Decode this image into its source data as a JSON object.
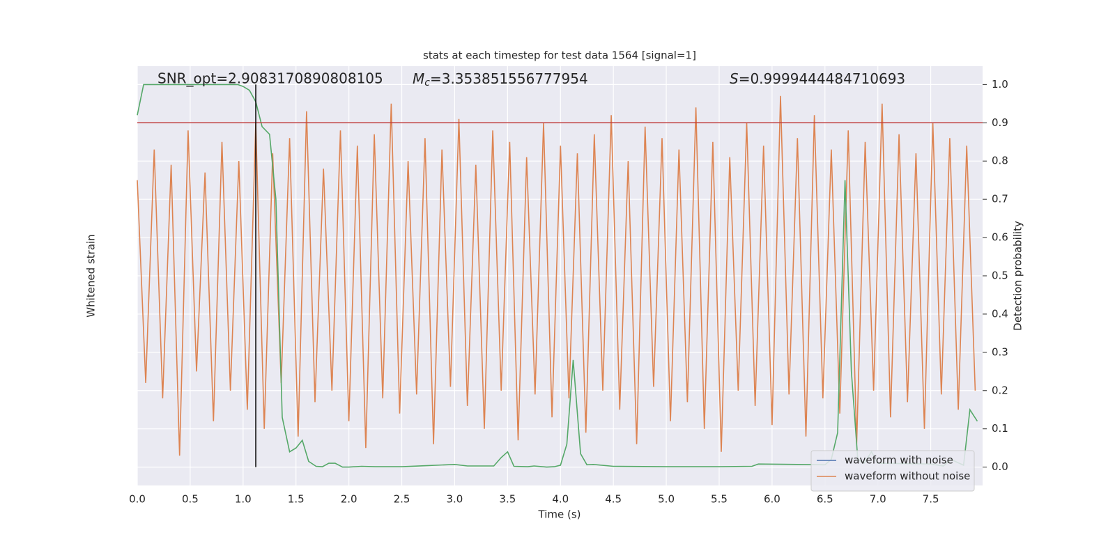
{
  "chart_data": {
    "type": "line",
    "title": "stats at each timestep for test data 1564 [signal=1]",
    "xlabel": "Time (s)",
    "ylabel": "Whitened strain",
    "y2label": "Detection probability",
    "annotations": {
      "snr": "SNR_opt=2.9083170890808105",
      "mc": {
        "symbol": "M",
        "sub": "c",
        "text": "=3.353851556777954"
      },
      "s": {
        "symbol": "S",
        "text": "=0.9999444484710693"
      }
    },
    "xlim": [
      0,
      7.99
    ],
    "xticks": [
      {
        "value": 0,
        "label": "0.0"
      },
      0.5,
      {
        "value": 1,
        "label": "1.0"
      },
      1.5,
      {
        "value": 2,
        "label": "2.0"
      },
      2.5,
      {
        "value": 3,
        "label": "3.0"
      },
      3.5,
      {
        "value": 4,
        "label": "4.0"
      },
      4.5,
      {
        "value": 5,
        "label": "5.0"
      },
      5.5,
      {
        "value": 6,
        "label": "6.0"
      },
      6.5,
      {
        "value": 7,
        "label": "7.0"
      },
      7.5
    ],
    "ylim": [
      -0.048,
      1.048
    ],
    "y2lim": [
      -0.048,
      1.048
    ],
    "y2ticks": [
      {
        "value": 0,
        "label": "0.0"
      },
      0.1,
      0.2,
      0.3,
      0.4,
      0.5,
      0.6,
      0.7,
      0.8,
      0.9,
      {
        "value": 1,
        "label": "1.0"
      }
    ],
    "grid": true,
    "background": "#eaeaf2",
    "legend": "lower right",
    "threshold": {
      "value": 0.9,
      "color": "#c03d3e"
    },
    "marker_time": {
      "value": 1.12,
      "color": "#000000"
    },
    "series": [
      {
        "name": "waveform with noise",
        "color": "#4c72b0"
      },
      {
        "name": "waveform without noise",
        "color": "#dd8452",
        "x": [
          0,
          0.08,
          0.16,
          0.24,
          0.32,
          0.4,
          0.48,
          0.56,
          0.64,
          0.72,
          0.8,
          0.88,
          0.96,
          1.04,
          1.12,
          1.2,
          1.28,
          1.36,
          1.44,
          1.52,
          1.6,
          1.68,
          1.76,
          1.84,
          1.92,
          2,
          2.08,
          2.16,
          2.24,
          2.32,
          2.4,
          2.48,
          2.56,
          2.64,
          2.72,
          2.8,
          2.88,
          2.96,
          3.04,
          3.12,
          3.2,
          3.28,
          3.36,
          3.44,
          3.52,
          3.6,
          3.68,
          3.76,
          3.84,
          3.92,
          4,
          4.08,
          4.16,
          4.24,
          4.32,
          4.4,
          4.48,
          4.56,
          4.64,
          4.72,
          4.8,
          4.88,
          4.96,
          5.04,
          5.12,
          5.2,
          5.28,
          5.36,
          5.44,
          5.52,
          5.6,
          5.68,
          5.76,
          5.84,
          5.92,
          6,
          6.08,
          6.16,
          6.24,
          6.32,
          6.4,
          6.48,
          6.56,
          6.64,
          6.72,
          6.8,
          6.88,
          6.96,
          7.04,
          7.12,
          7.2,
          7.28,
          7.36,
          7.44,
          7.52,
          7.6,
          7.68,
          7.76,
          7.84,
          7.92
        ],
        "values": [
          0.75,
          0.22,
          0.83,
          0.18,
          0.79,
          0.03,
          0.88,
          0.25,
          0.77,
          0.12,
          0.85,
          0.2,
          0.8,
          0.15,
          0.9,
          0.1,
          0.82,
          0.22,
          0.86,
          0.08,
          0.93,
          0.17,
          0.78,
          0.2,
          0.88,
          0.12,
          0.84,
          0.05,
          0.87,
          0.18,
          0.95,
          0.14,
          0.8,
          0.19,
          0.86,
          0.06,
          0.83,
          0.21,
          0.91,
          0.16,
          0.79,
          0.1,
          0.88,
          0.2,
          0.85,
          0.07,
          0.81,
          0.19,
          0.9,
          0.13,
          0.84,
          0.18,
          0.82,
          0.09,
          0.87,
          0.2,
          0.92,
          0.15,
          0.8,
          0.06,
          0.89,
          0.21,
          0.86,
          0.12,
          0.83,
          0.17,
          0.94,
          0.1,
          0.85,
          0.04,
          0.81,
          0.2,
          0.9,
          0.16,
          0.84,
          0.11,
          0.97,
          0.19,
          0.86,
          0.08,
          0.92,
          0.18,
          0.83,
          0.14,
          0.88,
          0.06,
          0.85,
          0.2,
          0.95,
          0.13,
          0.87,
          0.17,
          0.82,
          0.1,
          0.9,
          0.19,
          0.86,
          0.15,
          0.84,
          0.2
        ]
      },
      {
        "name": "detection probability",
        "color": "#55a868",
        "axis": "y2",
        "in_legend": false,
        "x": [
          0,
          0.06,
          0.2,
          0.95,
          1,
          1.06,
          1.12,
          1.18,
          1.25,
          1.31,
          1.37,
          1.44,
          1.5,
          1.56,
          1.62,
          1.69,
          1.75,
          1.81,
          1.87,
          1.94,
          2,
          2.12,
          2.25,
          2.5,
          2.75,
          3,
          3.12,
          3.37,
          3.44,
          3.5,
          3.56,
          3.69,
          3.75,
          3.87,
          3.94,
          4,
          4.06,
          4.12,
          4.19,
          4.25,
          4.31,
          4.5,
          5,
          5.5,
          5.81,
          5.87,
          6.5,
          6.56,
          6.62,
          6.69,
          6.75,
          6.81,
          6.87,
          6.94,
          7,
          7.5,
          7.62,
          7.69,
          7.81,
          7.87,
          7.94
        ],
        "values": [
          0.92,
          1,
          1,
          1,
          0.995,
          0.985,
          0.955,
          0.89,
          0.87,
          0.7,
          0.13,
          0.04,
          0.05,
          0.07,
          0.015,
          0.002,
          0.001,
          0.01,
          0.01,
          0,
          0,
          0.002,
          0.001,
          0.001,
          0.004,
          0.007,
          0.003,
          0.003,
          0.025,
          0.04,
          0.002,
          0.001,
          0.003,
          0,
          0.001,
          0.005,
          0.06,
          0.28,
          0.035,
          0.006,
          0.007,
          0.002,
          0.001,
          0.001,
          0.002,
          0.008,
          0.006,
          0.02,
          0.09,
          0.75,
          0.25,
          0.02,
          0.01,
          0.04,
          0.01,
          0.008,
          0.003,
          0.02,
          0.005,
          0.15,
          0.12
        ]
      }
    ]
  }
}
